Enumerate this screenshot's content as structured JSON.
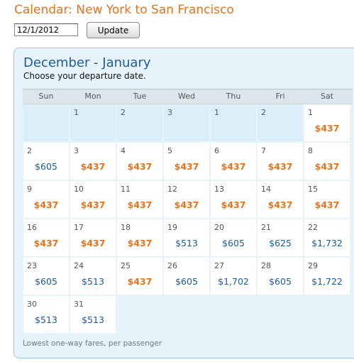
{
  "header": {
    "title": "Calendar: New York to San Francisco"
  },
  "date_input": {
    "value": "12/1/2012"
  },
  "update_label": "Update",
  "calendar": {
    "month_title": "December - January",
    "instruction": "Choose your departure date.",
    "weekdays": [
      "Sun",
      "Mon",
      "Tue",
      "Wed",
      "Thu",
      "Fri",
      "Sat"
    ],
    "footnote": "Lowest one-way fares, per passenger",
    "colors": {
      "cheap_fare": "#e8731f",
      "regular_fare": "#1e5a9c"
    },
    "weeks": [
      [
        {
          "day": "",
          "price": "",
          "cheap": false,
          "active": false
        },
        {
          "day": "1",
          "price": "",
          "cheap": false,
          "active": false
        },
        {
          "day": "2",
          "price": "",
          "cheap": false,
          "active": false
        },
        {
          "day": "3",
          "price": "",
          "cheap": false,
          "active": false
        },
        {
          "day": "1",
          "price": "",
          "cheap": false,
          "active": false
        },
        {
          "day": "2",
          "price": "",
          "cheap": false,
          "active": false
        },
        {
          "day": "1",
          "price": "$437",
          "cheap": true,
          "active": true
        }
      ],
      [
        {
          "day": "2",
          "price": "$605",
          "cheap": false,
          "active": true
        },
        {
          "day": "3",
          "price": "$437",
          "cheap": true,
          "active": true
        },
        {
          "day": "4",
          "price": "$437",
          "cheap": true,
          "active": true
        },
        {
          "day": "5",
          "price": "$437",
          "cheap": true,
          "active": true
        },
        {
          "day": "6",
          "price": "$437",
          "cheap": true,
          "active": true
        },
        {
          "day": "7",
          "price": "$437",
          "cheap": true,
          "active": true
        },
        {
          "day": "8",
          "price": "$437",
          "cheap": true,
          "active": true
        }
      ],
      [
        {
          "day": "9",
          "price": "$437",
          "cheap": true,
          "active": true
        },
        {
          "day": "10",
          "price": "$437",
          "cheap": true,
          "active": true
        },
        {
          "day": "11",
          "price": "$437",
          "cheap": true,
          "active": true
        },
        {
          "day": "12",
          "price": "$437",
          "cheap": true,
          "active": true
        },
        {
          "day": "13",
          "price": "$437",
          "cheap": true,
          "active": true
        },
        {
          "day": "14",
          "price": "$437",
          "cheap": true,
          "active": true
        },
        {
          "day": "15",
          "price": "$437",
          "cheap": true,
          "active": true
        }
      ],
      [
        {
          "day": "16",
          "price": "$437",
          "cheap": true,
          "active": true
        },
        {
          "day": "17",
          "price": "$437",
          "cheap": true,
          "active": true
        },
        {
          "day": "18",
          "price": "$437",
          "cheap": true,
          "active": true
        },
        {
          "day": "19",
          "price": "$513",
          "cheap": false,
          "active": true
        },
        {
          "day": "20",
          "price": "$605",
          "cheap": false,
          "active": true
        },
        {
          "day": "21",
          "price": "$625",
          "cheap": false,
          "active": true
        },
        {
          "day": "22",
          "price": "$1,732",
          "cheap": false,
          "active": true
        }
      ],
      [
        {
          "day": "23",
          "price": "$605",
          "cheap": false,
          "active": true
        },
        {
          "day": "24",
          "price": "$513",
          "cheap": false,
          "active": true
        },
        {
          "day": "25",
          "price": "$437",
          "cheap": true,
          "active": true
        },
        {
          "day": "26",
          "price": "$605",
          "cheap": false,
          "active": true
        },
        {
          "day": "27",
          "price": "$1,702",
          "cheap": false,
          "active": true
        },
        {
          "day": "28",
          "price": "$605",
          "cheap": false,
          "active": true
        },
        {
          "day": "29",
          "price": "$1,722",
          "cheap": false,
          "active": true
        }
      ],
      [
        {
          "day": "30",
          "price": "$513",
          "cheap": false,
          "active": true
        },
        {
          "day": "31",
          "price": "$513",
          "cheap": false,
          "active": true
        }
      ]
    ]
  }
}
